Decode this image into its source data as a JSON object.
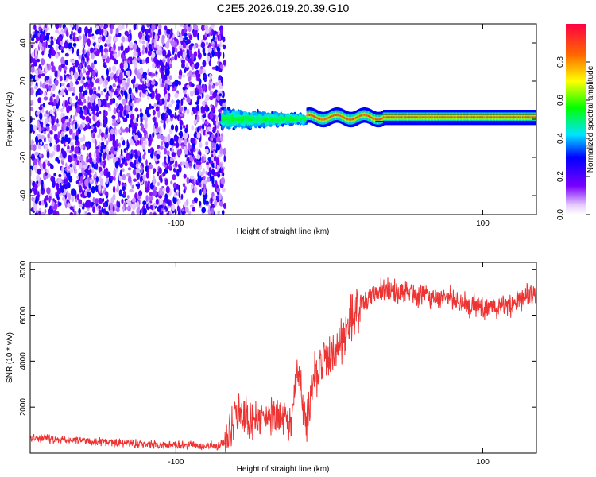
{
  "figure_title": "C2E5.2026.019.20.39.G10",
  "chart_data": [
    {
      "type": "heatmap",
      "title": "C2E5.2026.019.20.39.G10",
      "xlabel": "Height of straight line (km)",
      "ylabel": "Frequency (Hz)",
      "xlim": [
        -195,
        135
      ],
      "ylim": [
        -50,
        50
      ],
      "x_ticks": [
        -100,
        100
      ],
      "x_tick_labels": [
        "-100",
        "100"
      ],
      "y_ticks": [
        -40,
        -20,
        0,
        20,
        40
      ],
      "y_tick_labels": [
        "-40",
        "-20",
        "0",
        "20",
        "40"
      ],
      "regions": [
        {
          "name": "noise",
          "x_range": [
            -195,
            -68
          ],
          "y_range": [
            -50,
            50
          ],
          "amplitude_range": [
            0.05,
            0.25
          ]
        },
        {
          "name": "onset",
          "x_range": [
            -70,
            -15
          ],
          "y_range": [
            -8,
            8
          ],
          "amplitude_range": [
            0.2,
            0.5
          ]
        },
        {
          "name": "carrier",
          "x_range": [
            -15,
            135
          ],
          "frequency": 1,
          "amplitude_range": [
            0.8,
            0.95
          ]
        }
      ],
      "colorbar": {
        "label": "Normalized spectral amplitude",
        "range": [
          0,
          1
        ],
        "ticks": [
          0.0,
          0.2,
          0.4,
          0.6,
          0.8
        ],
        "tick_labels": [
          "0.0",
          "0.2",
          "0.4",
          "0.6",
          "0.8"
        ]
      },
      "grid": false
    },
    {
      "type": "line",
      "xlabel": "Height of straight line (km)",
      "ylabel": "SNR (10 * v/v)",
      "xlim": [
        -195,
        135
      ],
      "ylim": [
        0,
        8300
      ],
      "x_ticks": [
        -100,
        100
      ],
      "x_tick_labels": [
        "-100",
        "100"
      ],
      "y_ticks": [
        2000,
        4000,
        6000,
        8000
      ],
      "y_tick_labels": [
        "2000",
        "4000",
        "6000",
        "8000"
      ],
      "color": "#ee3333",
      "series": [
        {
          "name": "SNR",
          "x": [
            -195,
            -180,
            -160,
            -140,
            -120,
            -100,
            -85,
            -72,
            -68,
            -60,
            -50,
            -40,
            -30,
            -25,
            -20,
            -15,
            -10,
            0,
            10,
            15,
            20,
            30,
            40,
            50,
            60,
            70,
            80,
            90,
            100,
            110,
            120,
            130,
            135
          ],
          "y": [
            700,
            600,
            550,
            450,
            380,
            350,
            330,
            320,
            500,
            1800,
            1400,
            1500,
            1600,
            1400,
            3800,
            800,
            3500,
            4200,
            5000,
            6000,
            6500,
            7000,
            7100,
            7000,
            6900,
            6800,
            6700,
            6400,
            6300,
            6400,
            6500,
            7000,
            6800
          ]
        }
      ],
      "grid": false
    }
  ]
}
